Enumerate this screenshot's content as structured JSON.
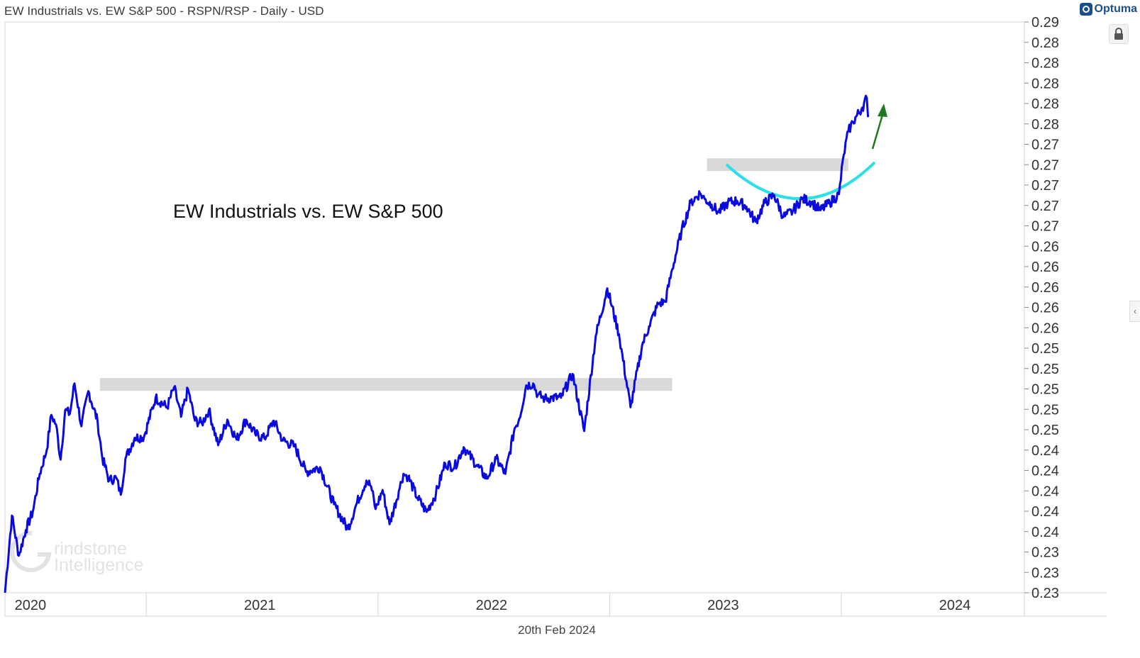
{
  "header": {
    "title": "EW Industrials vs. EW S&P 500 - RSPN/RSP - Daily - USD",
    "brand": "Optuma"
  },
  "footer": {
    "date": "20th Feb 2024"
  },
  "watermark": {
    "line1": "rindstone",
    "line2": "Intelligence"
  },
  "icons": {
    "brand": "optuma-logo-icon",
    "lock": "lock-icon",
    "collapse": "chevron-left-icon"
  },
  "colors": {
    "series": "#0a0adf",
    "resistance": "#d9d9d9",
    "base_arc": "#29e0e8",
    "arrow": "#1f7a1f"
  },
  "chart_data": {
    "type": "line",
    "title": "",
    "annotation_text": "EW Industrials vs. EW S&P 500",
    "x_ticks": [
      "2020",
      "2021",
      "2022",
      "2023",
      "2024"
    ],
    "y_tick_labels": [
      "0.23",
      "0.23",
      "0.23",
      "0.24",
      "0.24",
      "0.24",
      "0.24",
      "0.24",
      "0.25",
      "0.25",
      "0.25",
      "0.25",
      "0.25",
      "0.26",
      "0.26",
      "0.26",
      "0.26",
      "0.26",
      "0.27",
      "0.27",
      "0.27",
      "0.27",
      "0.27",
      "0.28",
      "0.28",
      "0.28",
      "0.28",
      "0.28",
      "0.29"
    ],
    "ylim": [
      0.23,
      0.29
    ],
    "series": [
      {
        "x": [
          2020.0,
          2020.03,
          2020.06,
          2020.09,
          2020.12,
          2020.15,
          2020.18,
          2020.2,
          2020.22,
          2020.24,
          2020.26,
          2020.28,
          2020.3,
          2020.33,
          2020.36,
          2020.4,
          2020.42,
          2020.45,
          2020.48,
          2020.5,
          2020.52,
          2020.56,
          2020.6,
          2020.65,
          2020.7,
          2020.73,
          2020.76,
          2020.79,
          2020.82,
          2020.85,
          2020.88,
          2020.92,
          2020.96,
          2021.0,
          2021.04,
          2021.08,
          2021.12,
          2021.16,
          2021.2,
          2021.25,
          2021.3,
          2021.36,
          2021.42,
          2021.48,
          2021.52,
          2021.56,
          2021.58,
          2021.6,
          2021.63,
          2021.66,
          2021.7,
          2021.72,
          2021.74,
          2021.78,
          2021.82,
          2021.86,
          2021.9,
          2021.94,
          2021.98,
          2022.0,
          2022.04,
          2022.08,
          2022.12,
          2022.16,
          2022.2,
          2022.22,
          2022.25,
          2022.28,
          2022.3,
          2022.33,
          2022.36,
          2022.4,
          2022.45,
          2022.5,
          2022.55,
          2022.6,
          2022.65,
          2022.7,
          2022.75,
          2022.78,
          2022.82,
          2022.85,
          2022.88,
          2022.92,
          2022.96,
          2023.0,
          2023.02,
          2023.05,
          2023.08,
          2023.12,
          2023.16,
          2023.2,
          2023.24,
          2023.28,
          2023.32,
          2023.36,
          2023.4,
          2023.44,
          2023.48,
          2023.52,
          2023.56,
          2023.6,
          2023.62,
          2023.64,
          2023.66,
          2023.7,
          2023.72
        ],
        "y": [
          0.23,
          0.2381,
          0.2339,
          0.2366,
          0.2385,
          0.2425,
          0.245,
          0.2487,
          0.2477,
          0.244,
          0.2492,
          0.2488,
          0.252,
          0.2475,
          0.2512,
          0.248,
          0.2442,
          0.2418,
          0.2421,
          0.2403,
          0.2441,
          0.2463,
          0.2464,
          0.2505,
          0.2495,
          0.2516,
          0.2485,
          0.2514,
          0.2481,
          0.2478,
          0.2492,
          0.2455,
          0.2482,
          0.2461,
          0.2482,
          0.2467,
          0.2462,
          0.2481,
          0.246,
          0.2454,
          0.2427,
          0.2432,
          0.2393,
          0.2367,
          0.2395,
          0.2418,
          0.2412,
          0.2388,
          0.2408,
          0.2372,
          0.2407,
          0.2425,
          0.2422,
          0.24,
          0.2385,
          0.2404,
          0.2436,
          0.2432,
          0.2453,
          0.2446,
          0.2433,
          0.242,
          0.2441,
          0.2425,
          0.2473,
          0.2483,
          0.2518,
          0.252,
          0.2508,
          0.2504,
          0.2505,
          0.2505,
          0.253,
          0.247,
          0.257,
          0.262,
          0.2572,
          0.2495,
          0.256,
          0.258,
          0.2604,
          0.2606,
          0.264,
          0.268,
          0.271,
          0.272,
          0.2714,
          0.2708,
          0.27,
          0.271,
          0.2712,
          0.2706,
          0.269,
          0.271,
          0.2718,
          0.2695,
          0.2701,
          0.2714,
          0.2711,
          0.2702,
          0.271,
          0.2719,
          0.276,
          0.2785,
          0.2795,
          0.281,
          0.282
        ]
      }
    ],
    "annotations": {
      "resistance_band_1": {
        "x": [
          2020.41,
          2022.88
        ],
        "y": 0.2519
      },
      "resistance_band_2": {
        "x": [
          2023.03,
          2023.64
        ],
        "y": 0.275
      }
    },
    "grid": false,
    "legend": "none"
  }
}
